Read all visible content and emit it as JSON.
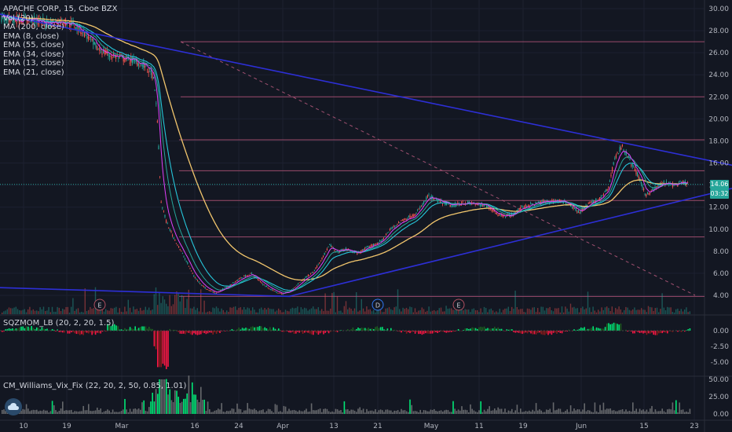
{
  "header": {
    "symbol_line": "APACHE CORP, 15, Cboe BZX"
  },
  "indicators": {
    "overlay": [
      "Vol (20)",
      "MA (200, close)",
      "EMA (8, close)",
      "EMA (55, close)",
      "EMA (34, close)",
      "EMA (13, close)",
      "EMA (21, close)"
    ],
    "sqzmom_label": "SQZMOM_LB (20, 2, 20, 1.5)",
    "williams_label": "CM_Williams_Vix_Fix (22, 20, 2, 50, 0.85, 1.01)"
  },
  "badges": {
    "last_price": "14.06",
    "countdown": "03:32"
  },
  "colors": {
    "background": "#131722",
    "up": "#26a69a",
    "down": "#ef5350",
    "trendline": "#2d2fd6",
    "hline": "#9b4b6b",
    "ma200": "#f2c66d",
    "ema_fast": "#e040fb",
    "ema_mid": "#26c6da",
    "vix_high": "#00e676",
    "vix_low": "#9e9e9e"
  },
  "chart_data": {
    "type": "candlestick",
    "ylim": [
      3.0,
      30.5
    ],
    "y_ticks": [
      "30.00",
      "28.00",
      "26.00",
      "24.00",
      "22.00",
      "20.00",
      "18.00",
      "16.00",
      "14.00",
      "12.00",
      "10.00",
      "8.00",
      "6.00",
      "4.00"
    ],
    "x_ticks": [
      "10",
      "19",
      "Mar",
      "16",
      "24",
      "Apr",
      "13",
      "21",
      "May",
      "11",
      "19",
      "Jun",
      "15",
      "23"
    ],
    "price_path": [
      [
        0,
        29.1
      ],
      [
        40,
        29.0
      ],
      [
        60,
        28.7
      ],
      [
        80,
        28.9
      ],
      [
        95,
        28.5
      ],
      [
        110,
        27.6
      ],
      [
        125,
        26.3
      ],
      [
        140,
        25.8
      ],
      [
        155,
        25.5
      ],
      [
        170,
        25.3
      ],
      [
        185,
        24.8
      ],
      [
        195,
        23.9
      ],
      [
        200,
        20.5
      ],
      [
        205,
        12.5
      ],
      [
        212,
        10.6
      ],
      [
        220,
        9.4
      ],
      [
        235,
        7.4
      ],
      [
        248,
        5.6
      ],
      [
        262,
        4.6
      ],
      [
        275,
        4.2
      ],
      [
        290,
        4.8
      ],
      [
        305,
        5.5
      ],
      [
        320,
        6.0
      ],
      [
        335,
        5.0
      ],
      [
        348,
        4.4
      ],
      [
        360,
        4.1
      ],
      [
        372,
        4.5
      ],
      [
        385,
        5.4
      ],
      [
        400,
        6.2
      ],
      [
        412,
        7.6
      ],
      [
        420,
        8.6
      ],
      [
        428,
        7.9
      ],
      [
        440,
        8.2
      ],
      [
        455,
        7.8
      ],
      [
        470,
        8.4
      ],
      [
        485,
        8.9
      ],
      [
        500,
        10.2
      ],
      [
        515,
        10.9
      ],
      [
        530,
        11.4
      ],
      [
        545,
        13.0
      ],
      [
        560,
        12.5
      ],
      [
        575,
        12.1
      ],
      [
        590,
        12.4
      ],
      [
        605,
        12.3
      ],
      [
        620,
        12.1
      ],
      [
        635,
        11.3
      ],
      [
        650,
        11.2
      ],
      [
        665,
        12.0
      ],
      [
        680,
        12.3
      ],
      [
        695,
        12.5
      ],
      [
        710,
        12.6
      ],
      [
        725,
        12.3
      ],
      [
        738,
        11.5
      ],
      [
        750,
        12.3
      ],
      [
        765,
        12.8
      ],
      [
        775,
        13.8
      ],
      [
        782,
        16.3
      ],
      [
        792,
        17.6
      ],
      [
        802,
        16.2
      ],
      [
        812,
        14.9
      ],
      [
        822,
        13.1
      ],
      [
        832,
        13.6
      ],
      [
        845,
        14.2
      ],
      [
        858,
        14.0
      ],
      [
        870,
        14.2
      ],
      [
        877,
        14.06
      ]
    ],
    "horizontal_levels": [
      27.0,
      22.0,
      18.1,
      15.3,
      12.6,
      9.3,
      3.9
    ],
    "trendlines": [
      {
        "from": [
          0,
          29.5
        ],
        "to": [
          932,
          15.8
        ]
      },
      {
        "from": [
          368,
          3.9
        ],
        "to": [
          932,
          13.7
        ]
      },
      {
        "from": [
          0,
          4.7
        ],
        "to": [
          370,
          3.9
        ]
      }
    ],
    "dashed_line": {
      "from": [
        230,
        27.0
      ],
      "to": [
        885,
        4.0
      ]
    },
    "event_markers": [
      {
        "label": "E",
        "x": 127
      },
      {
        "label": "D",
        "x": 481
      },
      {
        "label": "E",
        "x": 584
      }
    ],
    "sqzmom_ticks": [
      "0.00",
      "-2.50",
      "-5.00"
    ],
    "williams_ticks": [
      "50.00",
      "25.00",
      "0.00"
    ]
  }
}
